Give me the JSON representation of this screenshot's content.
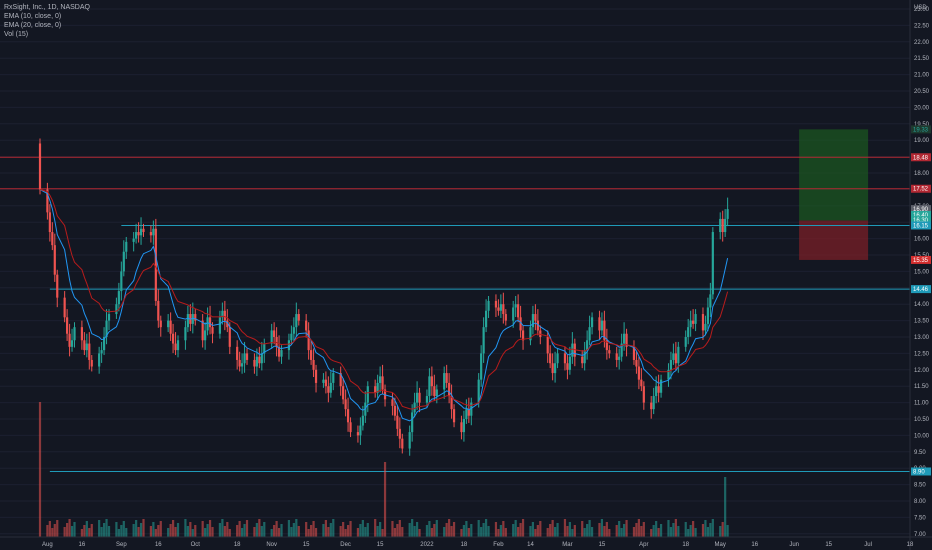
{
  "legend": {
    "title": "RxSight, Inc., 1D, NASDAQ",
    "ema10": "EMA (10, close, 0)",
    "ema20": "EMA (20, close, 0)",
    "vol": "Vol (15)"
  },
  "price_axis": {
    "unit": "USD",
    "labels": [
      "23.00",
      "22.50",
      "22.00",
      "21.50",
      "21.00",
      "20.50",
      "20.00",
      "19.50",
      "19.00",
      "18.50",
      "18.00",
      "17.50",
      "17.00",
      "16.50",
      "16.00",
      "15.50",
      "15.00",
      "14.50",
      "14.00",
      "13.50",
      "13.00",
      "12.50",
      "12.00",
      "11.50",
      "11.00",
      "10.50",
      "10.00",
      "9.50",
      "9.00",
      "8.50",
      "8.00",
      "7.50",
      "7.00"
    ]
  },
  "tags": [
    {
      "text": "19.33",
      "price": 19.33,
      "color": "#26a69a",
      "bg": "#1e3a2f"
    },
    {
      "text": "18.48",
      "price": 18.48,
      "color": "#ffffff",
      "bg": "#b22833"
    },
    {
      "text": "17.52",
      "price": 17.52,
      "color": "#ffffff",
      "bg": "#b22833"
    },
    {
      "text": "16.90",
      "price": 16.9,
      "color": "#ffffff",
      "bg": "#5d606b"
    },
    {
      "text": "16.40",
      "price": 16.72,
      "color": "#ffffff",
      "bg": "#26a69a"
    },
    {
      "text": "16.30",
      "price": 16.56,
      "color": "#ffffff",
      "bg": "#26a69a"
    },
    {
      "text": "16.15",
      "price": 16.4,
      "color": "#ffffff",
      "bg": "#1f9ab8"
    },
    {
      "text": "15.35",
      "price": 15.35,
      "color": "#ffffff",
      "bg": "#d32f2f"
    },
    {
      "text": "14.46",
      "price": 14.46,
      "color": "#ffffff",
      "bg": "#1f9ab8"
    },
    {
      "text": "8.90",
      "price": 8.9,
      "color": "#ffffff",
      "bg": "#1f9ab8"
    }
  ],
  "x_axis": {
    "labels": [
      "Aug",
      "16",
      "Sep",
      "16",
      "Oct",
      "18",
      "Nov",
      "15",
      "Dec",
      "15",
      "2022",
      "18",
      "Feb",
      "14",
      "Mar",
      "15",
      "Apr",
      "18",
      "May",
      "16",
      "Jun",
      "15",
      "Jul",
      "18"
    ]
  },
  "colors": {
    "up": "#26a69a",
    "down": "#ef5350",
    "ema10": "#2196f3",
    "ema20": "#b71c1c",
    "line_red": "#b22833",
    "line_blue": "#1f9ab8"
  },
  "chart_data": {
    "type": "candlestick",
    "title": "RxSight, Inc., 1D, NASDAQ",
    "unit": "USD",
    "ylim": [
      7.0,
      23.0
    ],
    "x_range": [
      "2021-07-30",
      "2022-07-18"
    ],
    "horizontal_lines": [
      {
        "price": 18.48,
        "color": "#b22833"
      },
      {
        "price": 17.52,
        "color": "#b22833"
      },
      {
        "price": 16.4,
        "color": "#1f9ab8",
        "from": "2021-09-01"
      },
      {
        "price": 14.46,
        "color": "#1f9ab8",
        "from": "2021-08-03"
      },
      {
        "price": 8.9,
        "color": "#1f9ab8",
        "from": "2021-08-03"
      }
    ],
    "position": {
      "from": "2022-06-03",
      "to": "2022-07-01",
      "entry": 16.55,
      "target": 19.33,
      "stop": 15.35
    },
    "closes": [
      17.5,
      16.8,
      16.2,
      15.8,
      14.9,
      14.2,
      13.6,
      13.1,
      12.7,
      12.9,
      13.3,
      12.9,
      12.6,
      12.8,
      12.3,
      12.1,
      12.5,
      12.6,
      13.0,
      13.5,
      13.7,
      14.0,
      14.4,
      15.0,
      15.6,
      15.9,
      16.0,
      16.2,
      16.1,
      16.3,
      16.2,
      16.1,
      16.3,
      14.1,
      13.5,
      13.3,
      13.5,
      13.1,
      12.8,
      12.6,
      12.9,
      13.3,
      13.7,
      13.4,
      13.7,
      13.5,
      12.9,
      13.2,
      13.6,
      13.3,
      13.1,
      13.6,
      13.8,
      13.5,
      13.3,
      12.7,
      12.3,
      12.1,
      12.2,
      12.5,
      12.3,
      12.1,
      12.4,
      12.2,
      12.5,
      12.8,
      13.2,
      13.0,
      12.7,
      12.4,
      12.6,
      12.9,
      13.1,
      13.3,
      13.7,
      13.5,
      13.2,
      12.6,
      12.3,
      12.0,
      11.6,
      11.7,
      11.5,
      11.3,
      11.6,
      11.9,
      11.5,
      11.1,
      10.8,
      10.4,
      10.1,
      10.0,
      10.3,
      10.6,
      11.0,
      11.5,
      11.3,
      11.6,
      11.8,
      11.4,
      11.1,
      10.9,
      10.6,
      10.2,
      9.9,
      9.6,
      10.1,
      10.7,
      11.0,
      11.3,
      11.0,
      11.2,
      11.8,
      11.5,
      11.2,
      11.4,
      11.9,
      11.6,
      11.2,
      10.8,
      10.4,
      10.1,
      10.5,
      10.8,
      10.6,
      11.0,
      11.7,
      12.5,
      13.3,
      13.8,
      14.1,
      13.9,
      13.8,
      14.0,
      13.7,
      13.5,
      13.9,
      14.0,
      13.6,
      13.2,
      12.9,
      13.3,
      13.7,
      13.5,
      13.2,
      13.0,
      12.5,
      12.2,
      11.9,
      12.2,
      12.5,
      12.2,
      12.0,
      12.4,
      12.8,
      12.4,
      12.2,
      12.6,
      12.9,
      13.3,
      13.6,
      13.2,
      13.5,
      12.9,
      12.6,
      12.5,
      12.3,
      12.4,
      12.8,
      13.1,
      12.7,
      12.3,
      12.1,
      11.7,
      11.5,
      11.0,
      10.8,
      11.2,
      11.5,
      11.3,
      11.7,
      12.0,
      12.3,
      12.5,
      12.2,
      12.7,
      13.0,
      13.3,
      13.5,
      13.4,
      13.7,
      13.2,
      13.4,
      13.9,
      14.3,
      16.2,
      16.6,
      16.2,
      16.6,
      16.9
    ]
  }
}
